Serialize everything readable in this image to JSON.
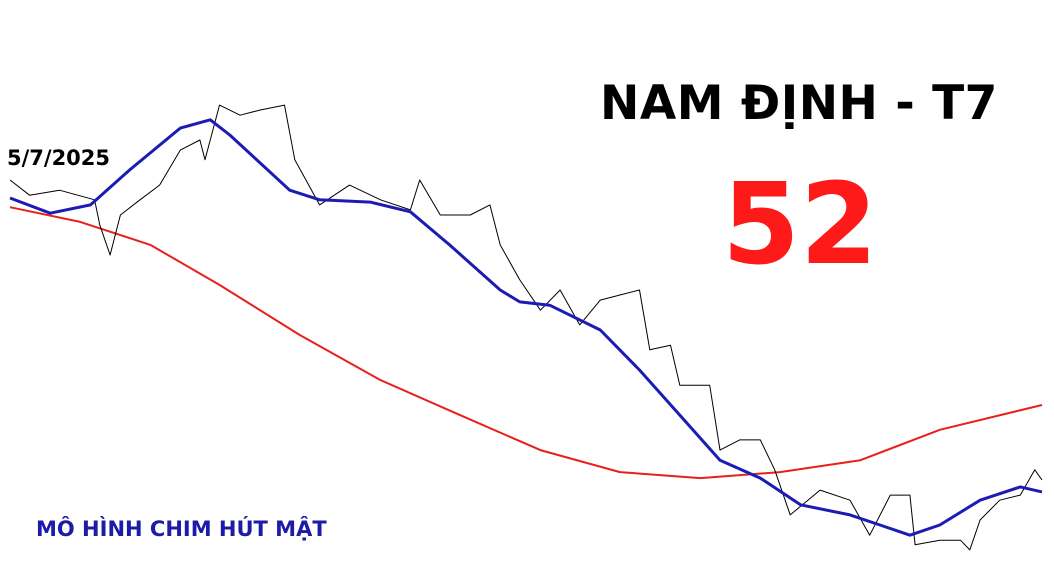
{
  "title": "NAM ĐỊNH - T7",
  "number": "52",
  "start_date": "5/7/2025",
  "pattern_label": "MÔ HÌNH CHIM HÚT MẬT",
  "chart_data": {
    "type": "line",
    "title": "NAM ĐỊNH - T7",
    "xlabel": "",
    "ylabel": "",
    "axes_shown": false,
    "grid": false,
    "legend": "none",
    "xlim": [
      0,
      100
    ],
    "ylim": [
      0,
      100
    ],
    "series": [
      {
        "color": "#000000",
        "points": [
          [
            0,
            82.6
          ],
          [
            1.9,
            79.3
          ],
          [
            4.8,
            80.4
          ],
          [
            8.2,
            78.3
          ],
          [
            8.7,
            72.8
          ],
          [
            9.7,
            66.3
          ],
          [
            10.7,
            75.0
          ],
          [
            12.6,
            78.3
          ],
          [
            14.5,
            81.5
          ],
          [
            16.5,
            89.1
          ],
          [
            18.4,
            91.3
          ],
          [
            18.9,
            87.0
          ],
          [
            20.3,
            98.9
          ],
          [
            22.3,
            96.7
          ],
          [
            24.2,
            97.8
          ],
          [
            26.6,
            98.9
          ],
          [
            27.6,
            87.0
          ],
          [
            30.0,
            77.2
          ],
          [
            32.9,
            81.5
          ],
          [
            35.9,
            78.3
          ],
          [
            38.8,
            76.1
          ],
          [
            39.7,
            82.6
          ],
          [
            41.7,
            75.0
          ],
          [
            44.6,
            75.0
          ],
          [
            46.5,
            77.2
          ],
          [
            47.5,
            68.5
          ],
          [
            49.4,
            60.9
          ],
          [
            51.4,
            54.3
          ],
          [
            53.3,
            58.7
          ],
          [
            55.2,
            51.1
          ],
          [
            57.2,
            56.5
          ],
          [
            59.1,
            57.6
          ],
          [
            61.0,
            58.7
          ],
          [
            62.0,
            45.7
          ],
          [
            64.0,
            46.7
          ],
          [
            64.9,
            38.0
          ],
          [
            67.8,
            38.0
          ],
          [
            68.8,
            23.9
          ],
          [
            70.7,
            26.1
          ],
          [
            72.7,
            26.1
          ],
          [
            74.1,
            19.6
          ],
          [
            75.6,
            9.8
          ],
          [
            78.5,
            15.2
          ],
          [
            81.4,
            13.0
          ],
          [
            83.3,
            5.4
          ],
          [
            85.3,
            14.1
          ],
          [
            87.2,
            14.1
          ],
          [
            87.7,
            3.3
          ],
          [
            90.1,
            4.3
          ],
          [
            92.1,
            4.3
          ],
          [
            93.0,
            2.2
          ],
          [
            94.0,
            8.7
          ],
          [
            95.9,
            13.0
          ],
          [
            97.9,
            14.1
          ],
          [
            99.3,
            19.6
          ],
          [
            100,
            17.4
          ]
        ]
      },
      {
        "color": "#1c1cb4",
        "points": [
          [
            0,
            78.7
          ],
          [
            3.9,
            75.4
          ],
          [
            7.8,
            77.2
          ],
          [
            11.6,
            84.8
          ],
          [
            16.5,
            93.9
          ],
          [
            19.4,
            95.7
          ],
          [
            21.3,
            92.4
          ],
          [
            27.1,
            80.4
          ],
          [
            30.0,
            78.3
          ],
          [
            34.9,
            77.8
          ],
          [
            38.8,
            75.7
          ],
          [
            42.6,
            68.5
          ],
          [
            47.5,
            58.7
          ],
          [
            49.4,
            56.1
          ],
          [
            52.3,
            55.4
          ],
          [
            57.2,
            50.0
          ],
          [
            61.0,
            41.3
          ],
          [
            64.9,
            31.5
          ],
          [
            68.8,
            21.7
          ],
          [
            72.7,
            17.8
          ],
          [
            76.6,
            12.0
          ],
          [
            81.4,
            9.8
          ],
          [
            84.3,
            7.6
          ],
          [
            87.2,
            5.4
          ],
          [
            90.1,
            7.6
          ],
          [
            94.0,
            13.0
          ],
          [
            97.9,
            15.9
          ],
          [
            100,
            14.8
          ]
        ]
      },
      {
        "color": "#e8201c",
        "points": [
          [
            0,
            76.7
          ],
          [
            6.8,
            73.5
          ],
          [
            13.6,
            68.5
          ],
          [
            20.3,
            59.8
          ],
          [
            28.1,
            48.9
          ],
          [
            35.9,
            39.1
          ],
          [
            43.6,
            31.5
          ],
          [
            51.4,
            23.9
          ],
          [
            59.1,
            19.1
          ],
          [
            66.9,
            17.8
          ],
          [
            74.6,
            19.1
          ],
          [
            82.4,
            21.7
          ],
          [
            90.1,
            28.3
          ],
          [
            100,
            33.7
          ]
        ]
      }
    ]
  }
}
